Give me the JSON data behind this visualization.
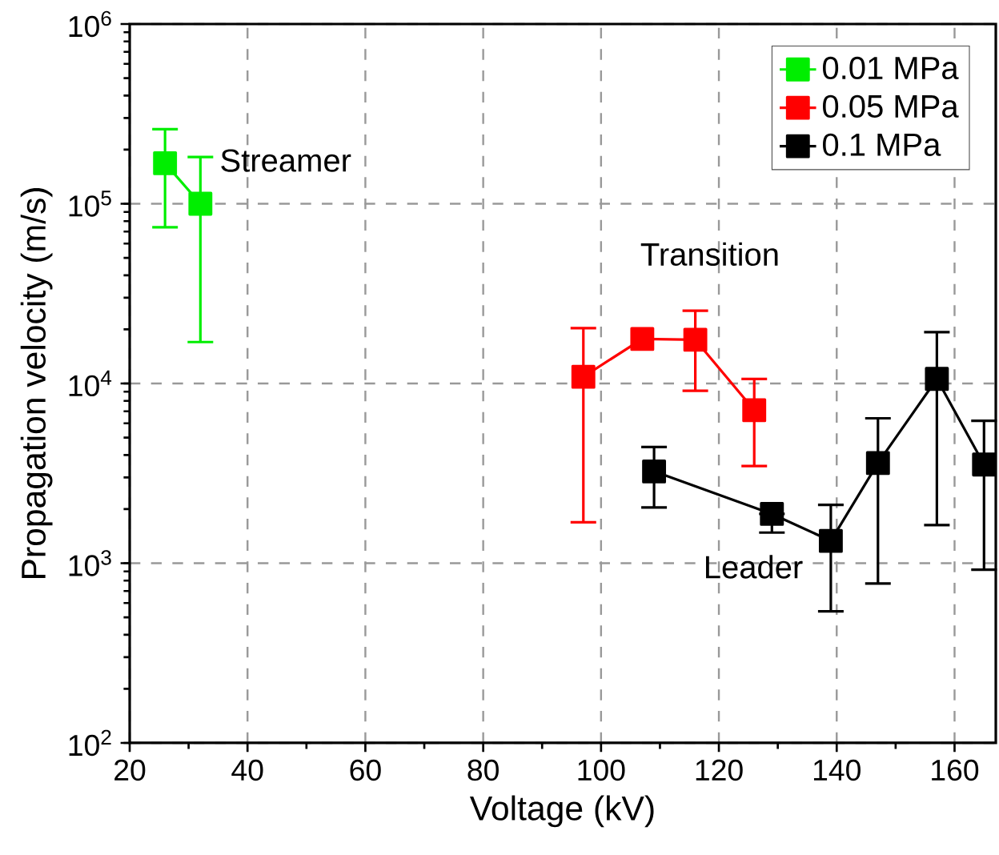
{
  "chart_data": {
    "type": "line",
    "xlabel": "Voltage (kV)",
    "ylabel": "Propagation velocity (m/s)",
    "xlim": [
      20,
      167
    ],
    "xticks": [
      20,
      40,
      60,
      80,
      100,
      120,
      140,
      160
    ],
    "ylim": [
      100,
      1000000
    ],
    "log": "y",
    "yticks": [
      {
        "value": 100,
        "label": "10$^{2}$"
      },
      {
        "value": 1000,
        "label": "10$^{3}$"
      },
      {
        "value": 10000,
        "label": "10$^{4}$"
      },
      {
        "value": 100000,
        "label": "10$^{5}$"
      },
      {
        "value": 1000000,
        "label": "10$^{6}$"
      }
    ],
    "grid": true,
    "legend": "top right",
    "marker": "square",
    "series": [
      {
        "name": "0.01 MPa",
        "color": "#00ee00",
        "x": [
          26,
          32
        ],
        "values": [
          168000,
          100000
        ],
        "errors": [
          [
            74000,
            260000
          ],
          [
            17000,
            182000
          ]
        ]
      },
      {
        "name": "0.05 MPa",
        "color": "#ff0000",
        "x": [
          97,
          107,
          116,
          126
        ],
        "values": [
          10900,
          17700,
          17500,
          7100
        ],
        "errors": [
          [
            1690,
            20300
          ],
          null,
          [
            9100,
            25400
          ],
          [
            3470,
            10600
          ]
        ]
      },
      {
        "name": "0.1 MPa",
        "color": "#000000",
        "x": [
          109,
          129,
          139,
          147,
          157,
          165
        ],
        "values": [
          3240,
          1880,
          1330,
          3610,
          10600,
          3540
        ],
        "errors": [
          [
            2040,
            4430
          ],
          [
            1480,
            1880
          ],
          [
            540,
            2110
          ],
          [
            770,
            6400
          ],
          [
            1630,
            19300
          ],
          [
            920,
            6200
          ]
        ]
      }
    ],
    "annotations": [
      "Streamer",
      "Transition",
      "Leader"
    ]
  }
}
